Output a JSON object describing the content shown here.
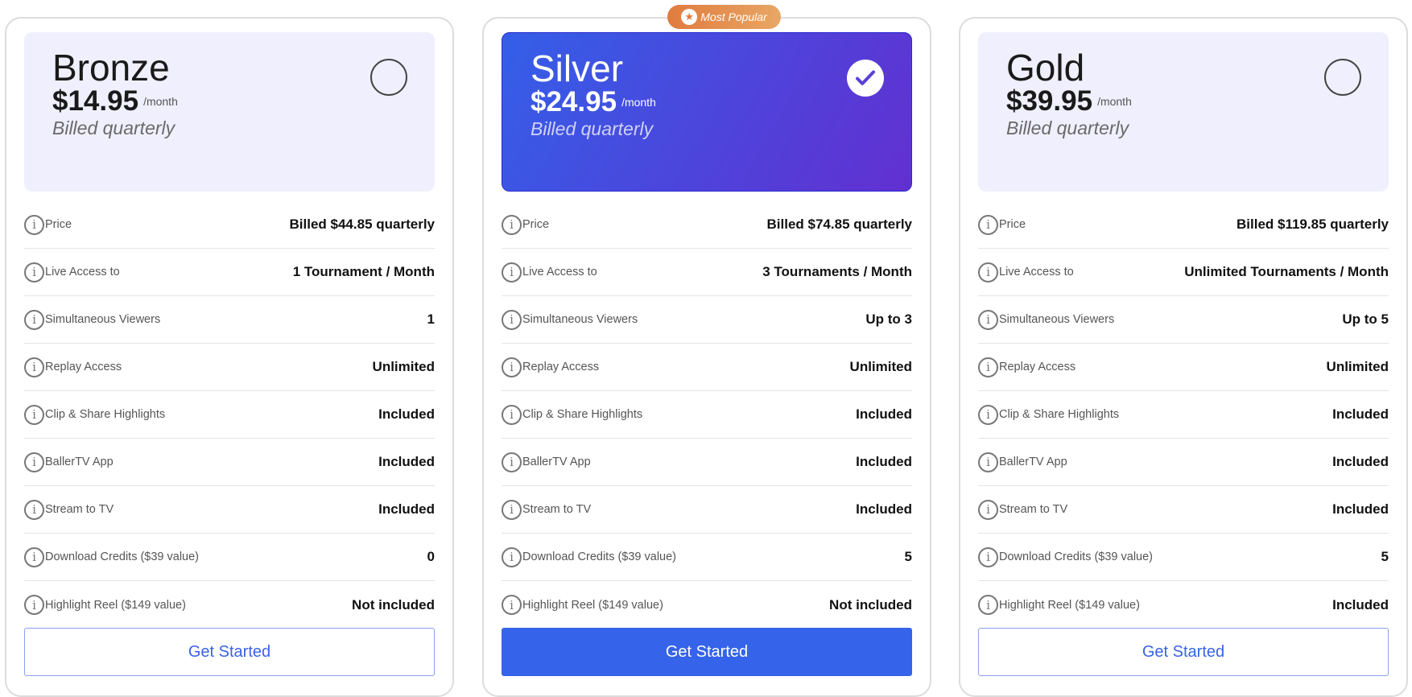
{
  "badge": {
    "label": "Most Popular",
    "icon": "star-icon",
    "colors": [
      "#e07b3e",
      "#e8a765"
    ]
  },
  "accent": "#3563e9",
  "row_labels": [
    "Price",
    "Live Access to",
    "Simultaneous Viewers",
    "Replay Access",
    "Clip & Share Highlights",
    "BallerTV App",
    "Stream to TV",
    "Download Credits ($39 value)",
    "Highlight Reel ($149 value)"
  ],
  "plans": [
    {
      "name": "Bronze",
      "price": "$14.95",
      "per": "/month",
      "billing": "Billed quarterly",
      "selected": false,
      "button": "Get Started",
      "values": [
        "Billed $44.85 quarterly",
        "1 Tournament / Month",
        "1",
        "Unlimited",
        "Included",
        "Included",
        "Included",
        "0",
        "Not included"
      ]
    },
    {
      "name": "Silver",
      "price": "$24.95",
      "per": "/month",
      "billing": "Billed quarterly",
      "selected": true,
      "button": "Get Started",
      "values": [
        "Billed $74.85 quarterly",
        "3 Tournaments / Month",
        "Up to 3",
        "Unlimited",
        "Included",
        "Included",
        "Included",
        "5",
        "Not included"
      ]
    },
    {
      "name": "Gold",
      "price": "$39.95",
      "per": "/month",
      "billing": "Billed quarterly",
      "selected": false,
      "button": "Get Started",
      "values": [
        "Billed $119.85 quarterly",
        "Unlimited Tournaments / Month",
        "Up to 5",
        "Unlimited",
        "Included",
        "Included",
        "Included",
        "5",
        "Included"
      ]
    }
  ]
}
